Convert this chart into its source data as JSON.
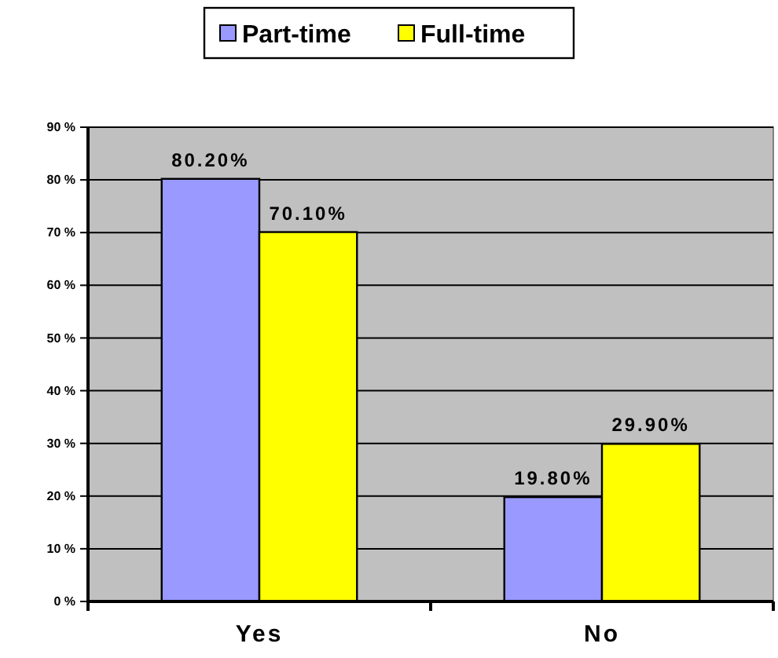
{
  "chart_data": {
    "type": "bar",
    "categories": [
      "Yes",
      "No"
    ],
    "series": [
      {
        "name": "Part-time",
        "color": "#9999ff",
        "values": [
          80.2,
          19.8
        ],
        "value_labels": [
          "80.20%",
          "19.80%"
        ]
      },
      {
        "name": "Full-time",
        "color": "#ffff00",
        "values": [
          70.1,
          29.9
        ],
        "value_labels": [
          "70.10%",
          "29.90%"
        ]
      }
    ],
    "ylim": [
      0,
      90
    ],
    "yticks": [
      {
        "value": 0,
        "label": "0 %"
      },
      {
        "value": 10,
        "label": "10 %"
      },
      {
        "value": 20,
        "label": "20 %"
      },
      {
        "value": 30,
        "label": "30 %"
      },
      {
        "value": 40,
        "label": "40 %"
      },
      {
        "value": 50,
        "label": "50 %"
      },
      {
        "value": 60,
        "label": "60 %"
      },
      {
        "value": 70,
        "label": "70 %"
      },
      {
        "value": 80,
        "label": "80 %"
      },
      {
        "value": 90,
        "label": "90 %"
      }
    ],
    "grid": "y",
    "legend": "top"
  }
}
